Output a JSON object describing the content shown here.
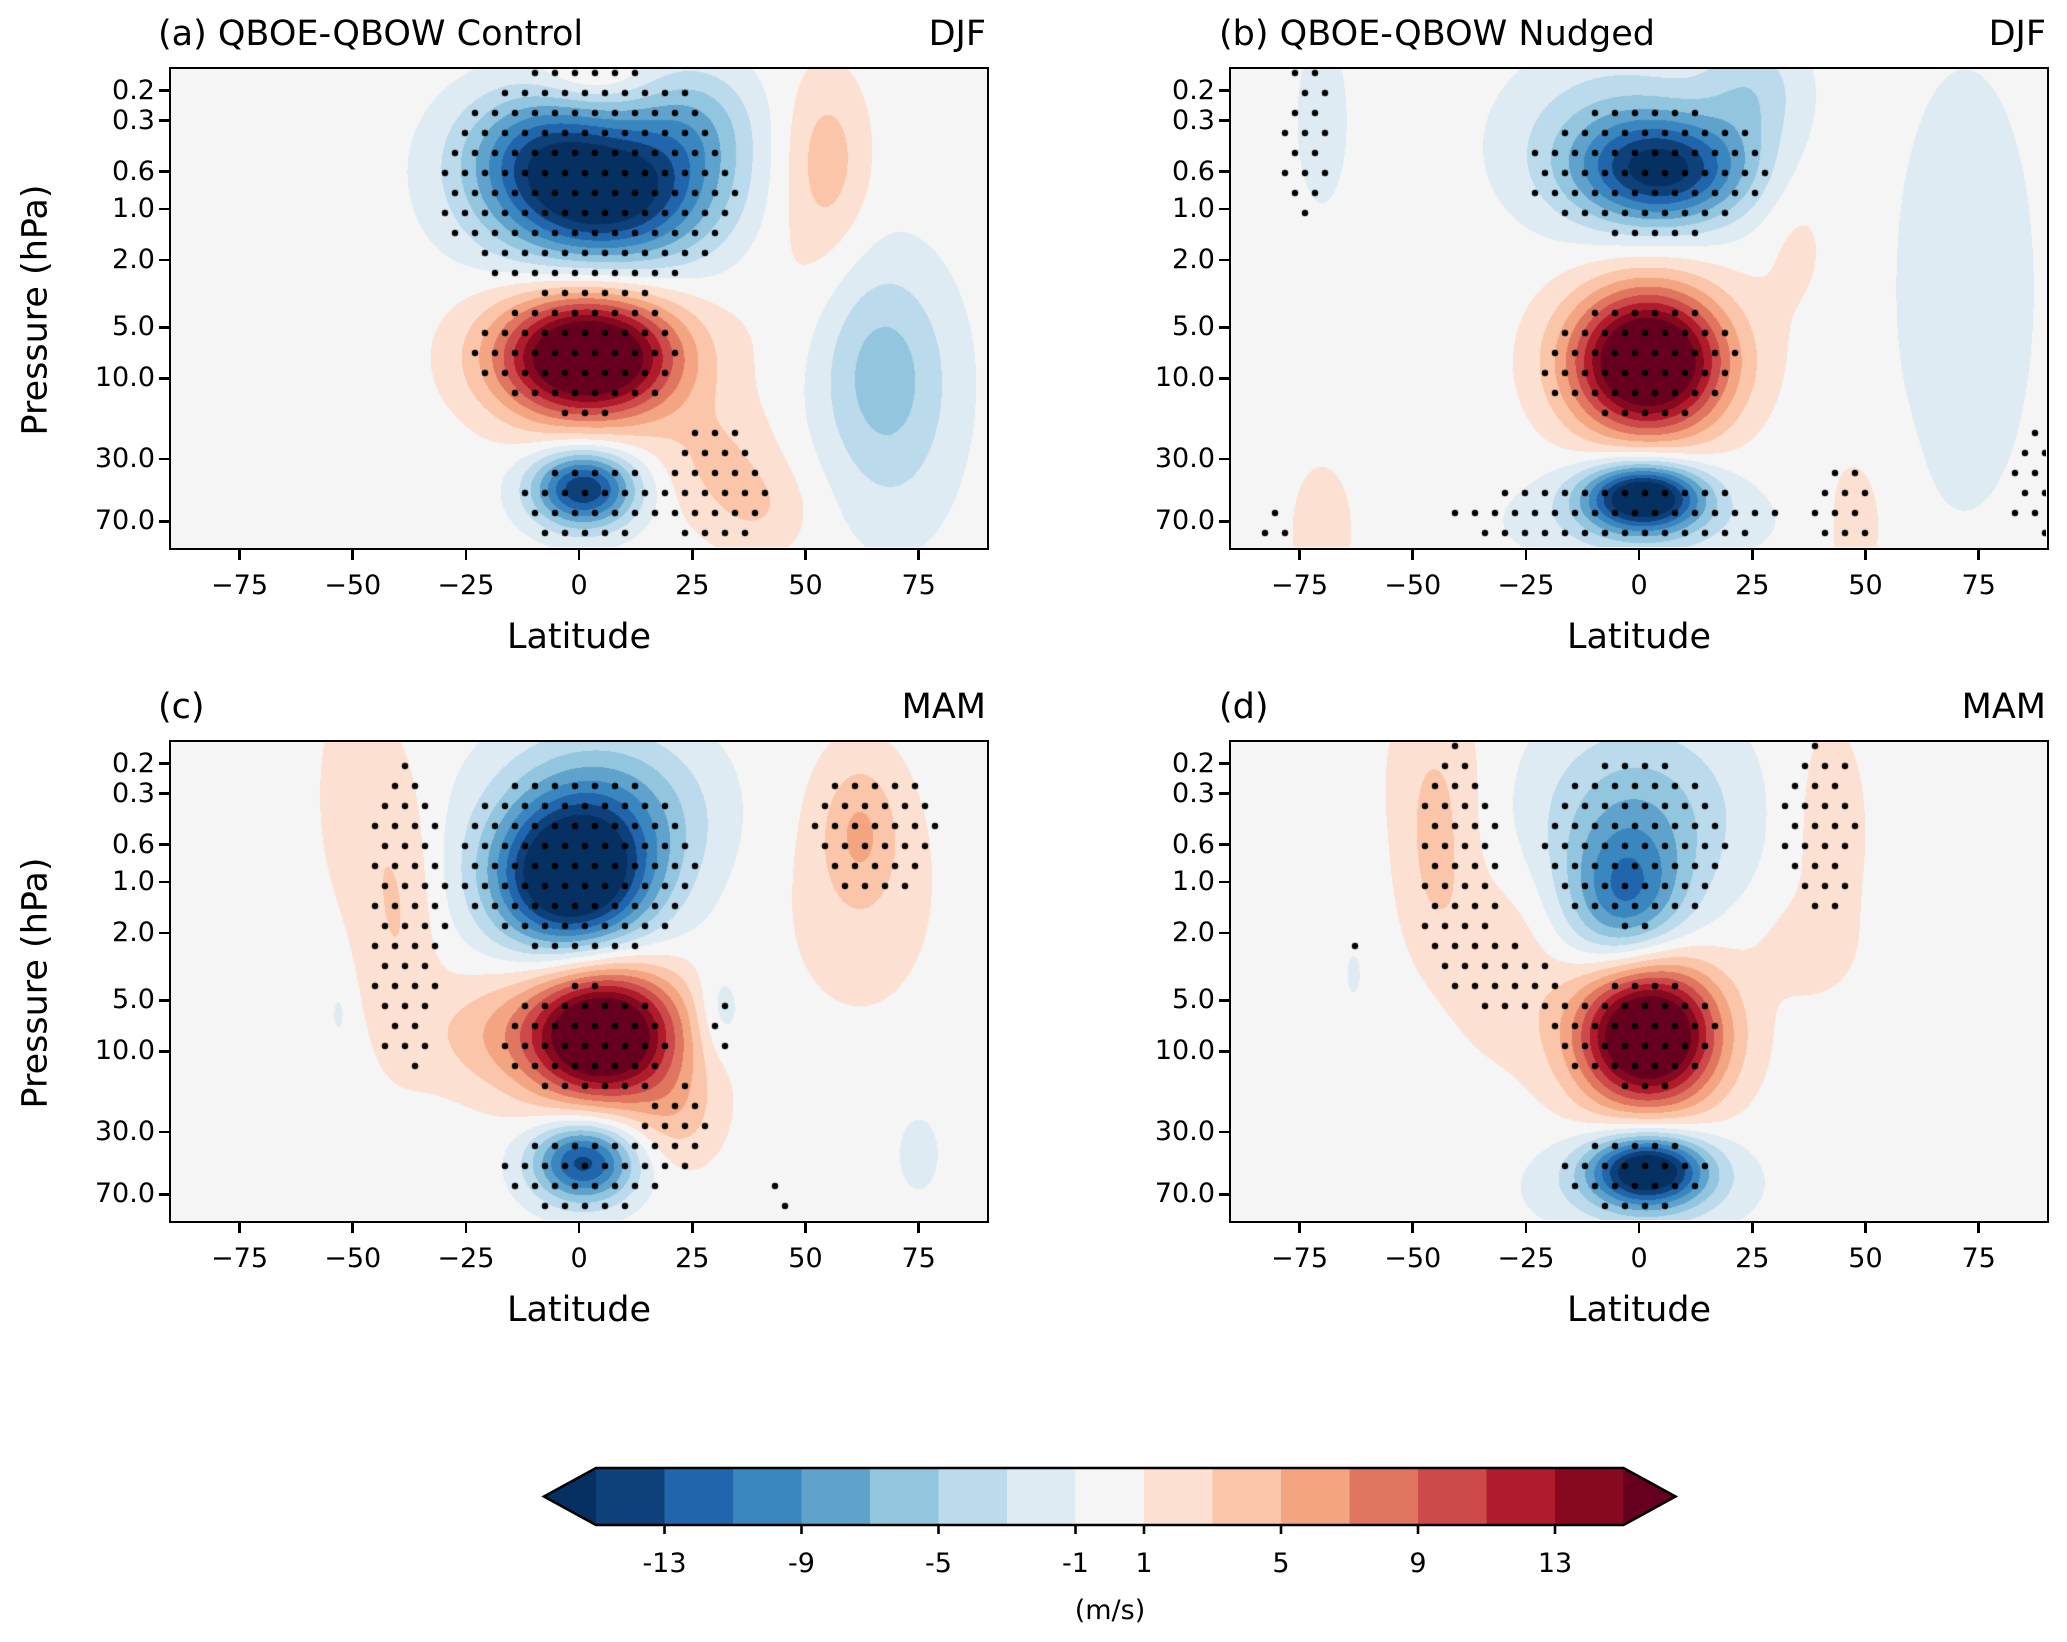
{
  "chart_data": {
    "type": "heatmap",
    "description": "Zonal-mean zonal wind difference (QBOE minus QBOW) filled contours with stippling for significance",
    "colorbar": {
      "label": "(m/s)",
      "levels": [
        -15,
        -13,
        -11,
        -9,
        -7,
        -5,
        -3,
        -1,
        1,
        3,
        5,
        7,
        9,
        11,
        13,
        15
      ],
      "tick_labels": [
        "-13",
        "-9",
        "-5",
        "-1",
        "1",
        "5",
        "9",
        "13"
      ],
      "tick_values": [
        -13,
        -9,
        -5,
        -1,
        1,
        5,
        9,
        13
      ],
      "extend": "both",
      "colormap": "RdBu_r",
      "colors": [
        "#053061",
        "#0e4179",
        "#2166ac",
        "#3a87c0",
        "#5fa2cb",
        "#92c5de",
        "#bbdaeb",
        "#deebf3",
        "#f5f5f5",
        "#fce0d1",
        "#fbc5a9",
        "#f3a581",
        "#e0765f",
        "#cc4a49",
        "#b01c2b",
        "#87091f",
        "#67001f"
      ]
    },
    "panels": [
      {
        "id": "a",
        "title_left": "(a) QBOE-QBOW Control",
        "title_right": "DJF",
        "xlabel": "Latitude",
        "ylabel": "Pressure (hPa)",
        "xlim": [
          -90,
          90
        ],
        "ylim_hPa": [
          0.15,
          100
        ],
        "yscale": "log",
        "xticks": [
          -75,
          -50,
          -25,
          0,
          25,
          50,
          75
        ],
        "xtick_labels": [
          "−75",
          "−50",
          "−25",
          "0",
          "25",
          "50",
          "75"
        ],
        "yticks": [
          0.2,
          0.3,
          0.6,
          1.0,
          2.0,
          5.0,
          10.0,
          30.0,
          70.0
        ],
        "ytick_labels": [
          "0.2",
          "0.3",
          "0.6",
          "1.0",
          "2.0",
          "5.0",
          "10.0",
          "30.0",
          "70.0"
        ],
        "features": [
          {
            "lat": 5,
            "p": 0.8,
            "amp": -18,
            "wlat": 17,
            "wlogp": 0.3
          },
          {
            "lat": -10,
            "p": 0.4,
            "amp": -6,
            "wlat": 12,
            "wlogp": 0.25
          },
          {
            "lat": 25,
            "p": 0.3,
            "amp": -5,
            "wlat": 10,
            "wlogp": 0.25
          },
          {
            "lat": 3,
            "p": 0.16,
            "amp": 3,
            "wlat": 8,
            "wlogp": 0.12
          },
          {
            "lat": 2,
            "p": 7.5,
            "amp": 22,
            "wlat": 14,
            "wlogp": 0.26
          },
          {
            "lat": 30,
            "p": 30,
            "amp": 3,
            "wlat": 9,
            "wlogp": 0.25
          },
          {
            "lat": 40,
            "p": 60,
            "amp": 2.5,
            "wlat": 8,
            "wlogp": 0.2
          },
          {
            "lat": 1,
            "p": 45,
            "amp": -15,
            "wlat": 8,
            "wlogp": 0.16
          },
          {
            "lat": 55,
            "p": 0.5,
            "amp": 3.5,
            "wlat": 6,
            "wlogp": 0.35
          },
          {
            "lat": 50,
            "p": 2,
            "amp": 1.5,
            "wlat": 9,
            "wlogp": 0.6
          },
          {
            "lat": 66,
            "p": 8,
            "amp": -5,
            "wlat": 11,
            "wlogp": 0.45
          },
          {
            "lat": 70,
            "p": 25,
            "amp": -2,
            "wlat": 10,
            "wlogp": 0.5
          }
        ],
        "stipple": [
          {
            "lat": 2,
            "p": 0.7,
            "wlat": 33,
            "wlogp": 0.72
          },
          {
            "lat": 0,
            "p": 7,
            "wlat": 23,
            "wlogp": 0.38
          },
          {
            "lat": 30,
            "p": 45,
            "wlat": 13,
            "wlogp": 0.35
          },
          {
            "lat": 3,
            "p": 55,
            "wlat": 16,
            "wlogp": 0.25
          }
        ]
      },
      {
        "id": "b",
        "title_left": "(b) QBOE-QBOW Nudged",
        "title_right": "DJF",
        "xlabel": "Latitude",
        "ylabel": "",
        "xlim": [
          -90,
          90
        ],
        "ylim_hPa": [
          0.15,
          100
        ],
        "yscale": "log",
        "xticks": [
          -75,
          -50,
          -25,
          0,
          25,
          50,
          75
        ],
        "xtick_labels": [
          "−75",
          "−50",
          "−25",
          "0",
          "25",
          "50",
          "75"
        ],
        "yticks": [
          0.2,
          0.3,
          0.6,
          1.0,
          2.0,
          5.0,
          10.0,
          30.0,
          70.0
        ],
        "ytick_labels": [
          "0.2",
          "0.3",
          "0.6",
          "1.0",
          "2.0",
          "5.0",
          "10.0",
          "30.0",
          "70.0"
        ],
        "features": [
          {
            "lat": 6,
            "p": 0.6,
            "amp": -13,
            "wlat": 13,
            "wlogp": 0.22
          },
          {
            "lat": -5,
            "p": 0.4,
            "amp": -5,
            "wlat": 16,
            "wlogp": 0.35
          },
          {
            "lat": 25,
            "p": 0.2,
            "amp": -4,
            "wlat": 8,
            "wlogp": 0.25
          },
          {
            "lat": 2,
            "p": 8,
            "amp": 22,
            "wlat": 12,
            "wlogp": 0.3
          },
          {
            "lat": 35,
            "p": 1.5,
            "amp": 1.5,
            "wlat": 6,
            "wlogp": 0.35
          },
          {
            "lat": 1,
            "p": 50,
            "amp": -18,
            "wlat": 9,
            "wlogp": 0.14
          },
          {
            "lat": 0,
            "p": 70,
            "amp": -3,
            "wlat": 20,
            "wlogp": 0.2
          },
          {
            "lat": -70,
            "p": 0.3,
            "amp": -1.8,
            "wlat": 5,
            "wlogp": 0.45
          },
          {
            "lat": -70,
            "p": 80,
            "amp": 1.8,
            "wlat": 6,
            "wlogp": 0.35
          },
          {
            "lat": 48,
            "p": 70,
            "amp": 2,
            "wlat": 6,
            "wlogp": 0.35
          },
          {
            "lat": 72,
            "p": 3,
            "amp": -1.8,
            "wlat": 14,
            "wlogp": 1.2
          }
        ],
        "stipple": [
          {
            "lat": 2,
            "p": 0.6,
            "wlat": 27,
            "wlogp": 0.4
          },
          {
            "lat": -73,
            "p": 0.4,
            "wlat": 6,
            "wlogp": 0.5
          },
          {
            "lat": 0,
            "p": 8,
            "wlat": 23,
            "wlogp": 0.35
          },
          {
            "lat": -5,
            "p": 65,
            "wlat": 38,
            "wlogp": 0.18
          },
          {
            "lat": 45,
            "p": 60,
            "wlat": 7,
            "wlogp": 0.3
          },
          {
            "lat": 88,
            "p": 40,
            "wlat": 6,
            "wlogp": 0.35
          },
          {
            "lat": -80,
            "p": 80,
            "wlat": 6,
            "wlogp": 0.12
          }
        ]
      },
      {
        "id": "c",
        "title_left": "(c)",
        "title_right": "MAM",
        "xlabel": "Latitude",
        "ylabel": "Pressure (hPa)",
        "xlim": [
          -90,
          90
        ],
        "ylim_hPa": [
          0.15,
          100
        ],
        "yscale": "log",
        "xticks": [
          -75,
          -50,
          -25,
          0,
          25,
          50,
          75
        ],
        "xtick_labels": [
          "−75",
          "−50",
          "−25",
          "0",
          "25",
          "50",
          "75"
        ],
        "yticks": [
          0.2,
          0.3,
          0.6,
          1.0,
          2.0,
          5.0,
          10.0,
          30.0,
          70.0
        ],
        "ytick_labels": [
          "0.2",
          "0.3",
          "0.6",
          "1.0",
          "2.0",
          "5.0",
          "10.0",
          "30.0",
          "70.0"
        ],
        "features": [
          {
            "lat": -2,
            "p": 1.0,
            "amp": -18,
            "wlat": 12,
            "wlogp": 0.3
          },
          {
            "lat": 5,
            "p": 0.4,
            "amp": -8,
            "wlat": 16,
            "wlogp": 0.35
          },
          {
            "lat": 5,
            "p": 8,
            "amp": 22,
            "wlat": 12,
            "wlogp": 0.28
          },
          {
            "lat": -22,
            "p": 8,
            "amp": 3,
            "wlat": 10,
            "wlogp": 0.25
          },
          {
            "lat": -40,
            "p": 1.5,
            "amp": 3,
            "wlat": 6,
            "wlogp": 0.6
          },
          {
            "lat": -50,
            "p": 0.3,
            "amp": 2,
            "wlat": 6,
            "wlogp": 0.5
          },
          {
            "lat": 22,
            "p": 25,
            "amp": 3,
            "wlat": 7,
            "wlogp": 0.22
          },
          {
            "lat": 1,
            "p": 45,
            "amp": -14,
            "wlat": 8,
            "wlogp": 0.17
          },
          {
            "lat": 31,
            "p": 6,
            "amp": -3,
            "wlat": 4,
            "wlogp": 0.2
          },
          {
            "lat": 62,
            "p": 0.5,
            "amp": 4,
            "wlat": 6,
            "wlogp": 0.3
          },
          {
            "lat": 62,
            "p": 1.2,
            "amp": 1.8,
            "wlat": 14,
            "wlogp": 0.6
          },
          {
            "lat": 75,
            "p": 40,
            "amp": -1.8,
            "wlat": 4,
            "wlogp": 0.2
          },
          {
            "lat": -53,
            "p": 6,
            "amp": -1.5,
            "wlat": 1.5,
            "wlogp": 0.12
          }
        ],
        "stipple": [
          {
            "lat": 0,
            "p": 0.8,
            "wlat": 27,
            "wlogp": 0.55
          },
          {
            "lat": 2,
            "p": 9,
            "wlat": 20,
            "wlogp": 0.35
          },
          {
            "lat": -38,
            "p": 1.5,
            "wlat": 9,
            "wlogp": 0.95
          },
          {
            "lat": 22,
            "p": 28,
            "wlat": 9,
            "wlogp": 0.25
          },
          {
            "lat": 1,
            "p": 55,
            "wlat": 18,
            "wlogp": 0.25
          },
          {
            "lat": 66,
            "p": 0.5,
            "wlat": 15,
            "wlogp": 0.38
          },
          {
            "lat": 31,
            "p": 7,
            "wlat": 3,
            "wlogp": 0.2
          },
          {
            "lat": 45,
            "p": 75,
            "wlat": 3,
            "wlogp": 0.15
          },
          {
            "lat": -37,
            "p": 11,
            "wlat": 2.5,
            "wlogp": 0.1
          }
        ]
      },
      {
        "id": "d",
        "title_left": "(d)",
        "title_right": "MAM",
        "xlabel": "Latitude",
        "ylabel": "",
        "xlim": [
          -90,
          90
        ],
        "ylim_hPa": [
          0.15,
          100
        ],
        "yscale": "log",
        "xticks": [
          -75,
          -50,
          -25,
          0,
          25,
          50,
          75
        ],
        "xtick_labels": [
          "−75",
          "−50",
          "−25",
          "0",
          "25",
          "50",
          "75"
        ],
        "yticks": [
          0.2,
          0.3,
          0.6,
          1.0,
          2.0,
          5.0,
          10.0,
          30.0,
          70.0
        ],
        "ytick_labels": [
          "0.2",
          "0.3",
          "0.6",
          "1.0",
          "2.0",
          "5.0",
          "10.0",
          "30.0",
          "70.0"
        ],
        "features": [
          {
            "lat": -3,
            "p": 1.3,
            "amp": -9,
            "wlat": 9,
            "wlogp": 0.3
          },
          {
            "lat": 0,
            "p": 0.4,
            "amp": -6,
            "wlat": 16,
            "wlogp": 0.4
          },
          {
            "lat": 2,
            "p": 8,
            "amp": 22,
            "wlat": 11,
            "wlogp": 0.3
          },
          {
            "lat": -30,
            "p": 3,
            "amp": 2.5,
            "wlat": 9,
            "wlogp": 0.4
          },
          {
            "lat": -45,
            "p": 0.8,
            "amp": 3,
            "wlat": 6,
            "wlogp": 0.4
          },
          {
            "lat": -45,
            "p": 0.2,
            "amp": 2,
            "wlat": 8,
            "wlogp": 0.35
          },
          {
            "lat": 42,
            "p": 0.5,
            "amp": 2,
            "wlat": 7,
            "wlogp": 0.55
          },
          {
            "lat": 35,
            "p": 2.5,
            "amp": 1.5,
            "wlat": 8,
            "wlogp": 0.2
          },
          {
            "lat": 2,
            "p": 50,
            "amp": -17,
            "wlat": 9,
            "wlogp": 0.15
          },
          {
            "lat": 0,
            "p": 65,
            "amp": -3,
            "wlat": 17,
            "wlogp": 0.2
          },
          {
            "lat": -63,
            "p": 3.5,
            "amp": -1.5,
            "wlat": 1.5,
            "wlogp": 0.12
          }
        ],
        "stipple": [
          {
            "lat": 0,
            "p": 0.6,
            "wlat": 21,
            "wlogp": 0.5
          },
          {
            "lat": -40,
            "p": 0.8,
            "wlat": 9,
            "wlogp": 0.75
          },
          {
            "lat": 0,
            "p": 8,
            "wlat": 19,
            "wlogp": 0.33
          },
          {
            "lat": -28,
            "p": 4,
            "wlat": 10,
            "wlogp": 0.25
          },
          {
            "lat": 40,
            "p": 0.5,
            "wlat": 8,
            "wlogp": 0.55
          },
          {
            "lat": 0,
            "p": 55,
            "wlat": 17,
            "wlogp": 0.22
          },
          {
            "lat": -63,
            "p": 2.5,
            "wlat": 1.5,
            "wlogp": 0.1
          }
        ]
      }
    ]
  }
}
